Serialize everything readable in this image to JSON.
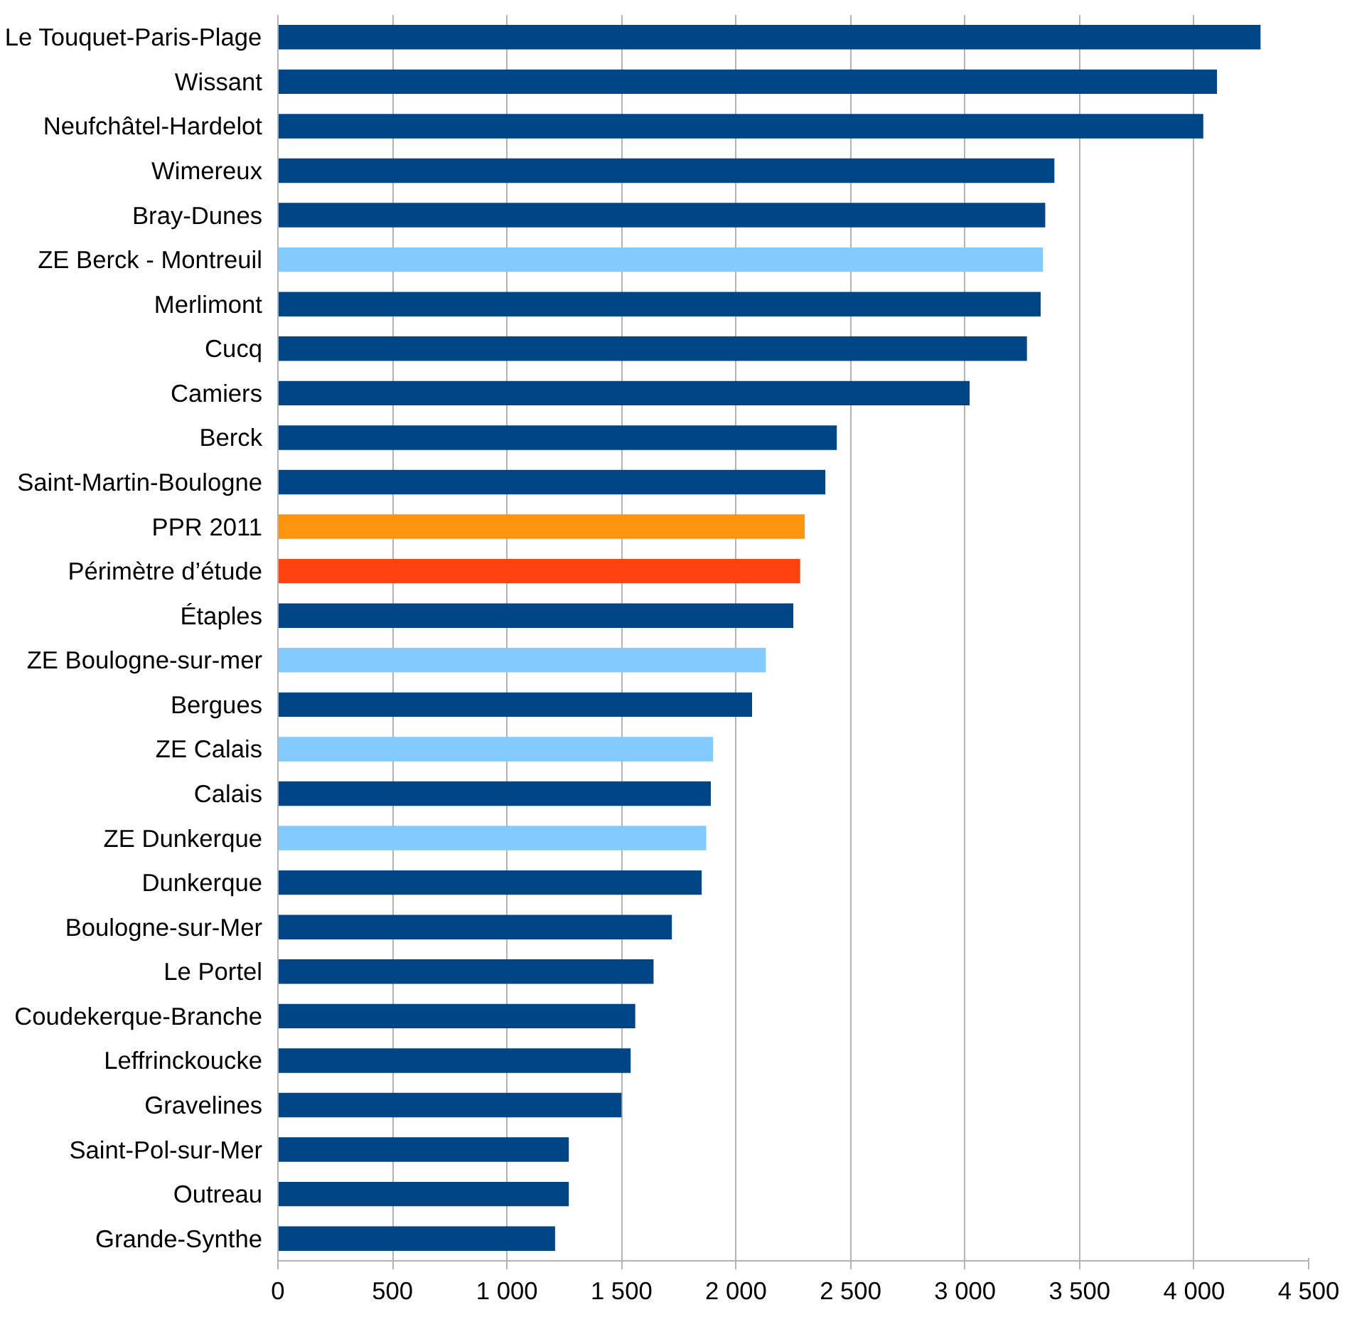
{
  "chart_data": {
    "type": "bar",
    "orientation": "horizontal",
    "categories": [
      "Le Touquet-Paris-Plage",
      "Wissant",
      "Neufchâtel-Hardelot",
      "Wimereux",
      "Bray-Dunes",
      "ZE Berck - Montreuil",
      "Merlimont",
      "Cucq",
      "Camiers",
      "Berck",
      "Saint-Martin-Boulogne",
      "PPR 2011",
      "Périmètre d’étude",
      "Étaples",
      "ZE Boulogne-sur-mer",
      "Bergues",
      "ZE Calais",
      "Calais",
      "ZE Dunkerque",
      "Dunkerque",
      "Boulogne-sur-Mer",
      "Le Portel",
      "Coudekerque-Branche",
      "Leffrinckoucke",
      "Gravelines",
      "Saint-Pol-sur-Mer",
      "Outreau",
      "Grande-Synthe"
    ],
    "values": [
      4290,
      4100,
      4040,
      3390,
      3350,
      3340,
      3330,
      3270,
      3020,
      2440,
      2390,
      2300,
      2280,
      2250,
      2130,
      2070,
      1900,
      1890,
      1870,
      1850,
      1720,
      1640,
      1560,
      1540,
      1500,
      1270,
      1270,
      1210
    ],
    "colors": [
      "#004586",
      "#004586",
      "#004586",
      "#004586",
      "#004586",
      "#83caff",
      "#004586",
      "#004586",
      "#004586",
      "#004586",
      "#004586",
      "#ff950e",
      "#ff420e",
      "#004586",
      "#83caff",
      "#004586",
      "#83caff",
      "#004586",
      "#83caff",
      "#004586",
      "#004586",
      "#004586",
      "#004586",
      "#004586",
      "#004586",
      "#004586",
      "#004586",
      "#004586"
    ],
    "xlim": [
      0,
      4500
    ],
    "xticks": [
      0,
      500,
      {
        "value": 1000,
        "label": "1 000"
      },
      {
        "value": 1500,
        "label": "1 500"
      },
      {
        "value": 2000,
        "label": "2 000"
      },
      {
        "value": 2500,
        "label": "2 500"
      },
      {
        "value": 3000,
        "label": "3 000"
      },
      {
        "value": 3500,
        "label": "3 500"
      },
      {
        "value": 4000,
        "label": "4 000"
      },
      {
        "value": 4500,
        "label": "4 500"
      }
    ],
    "grid": "x"
  }
}
